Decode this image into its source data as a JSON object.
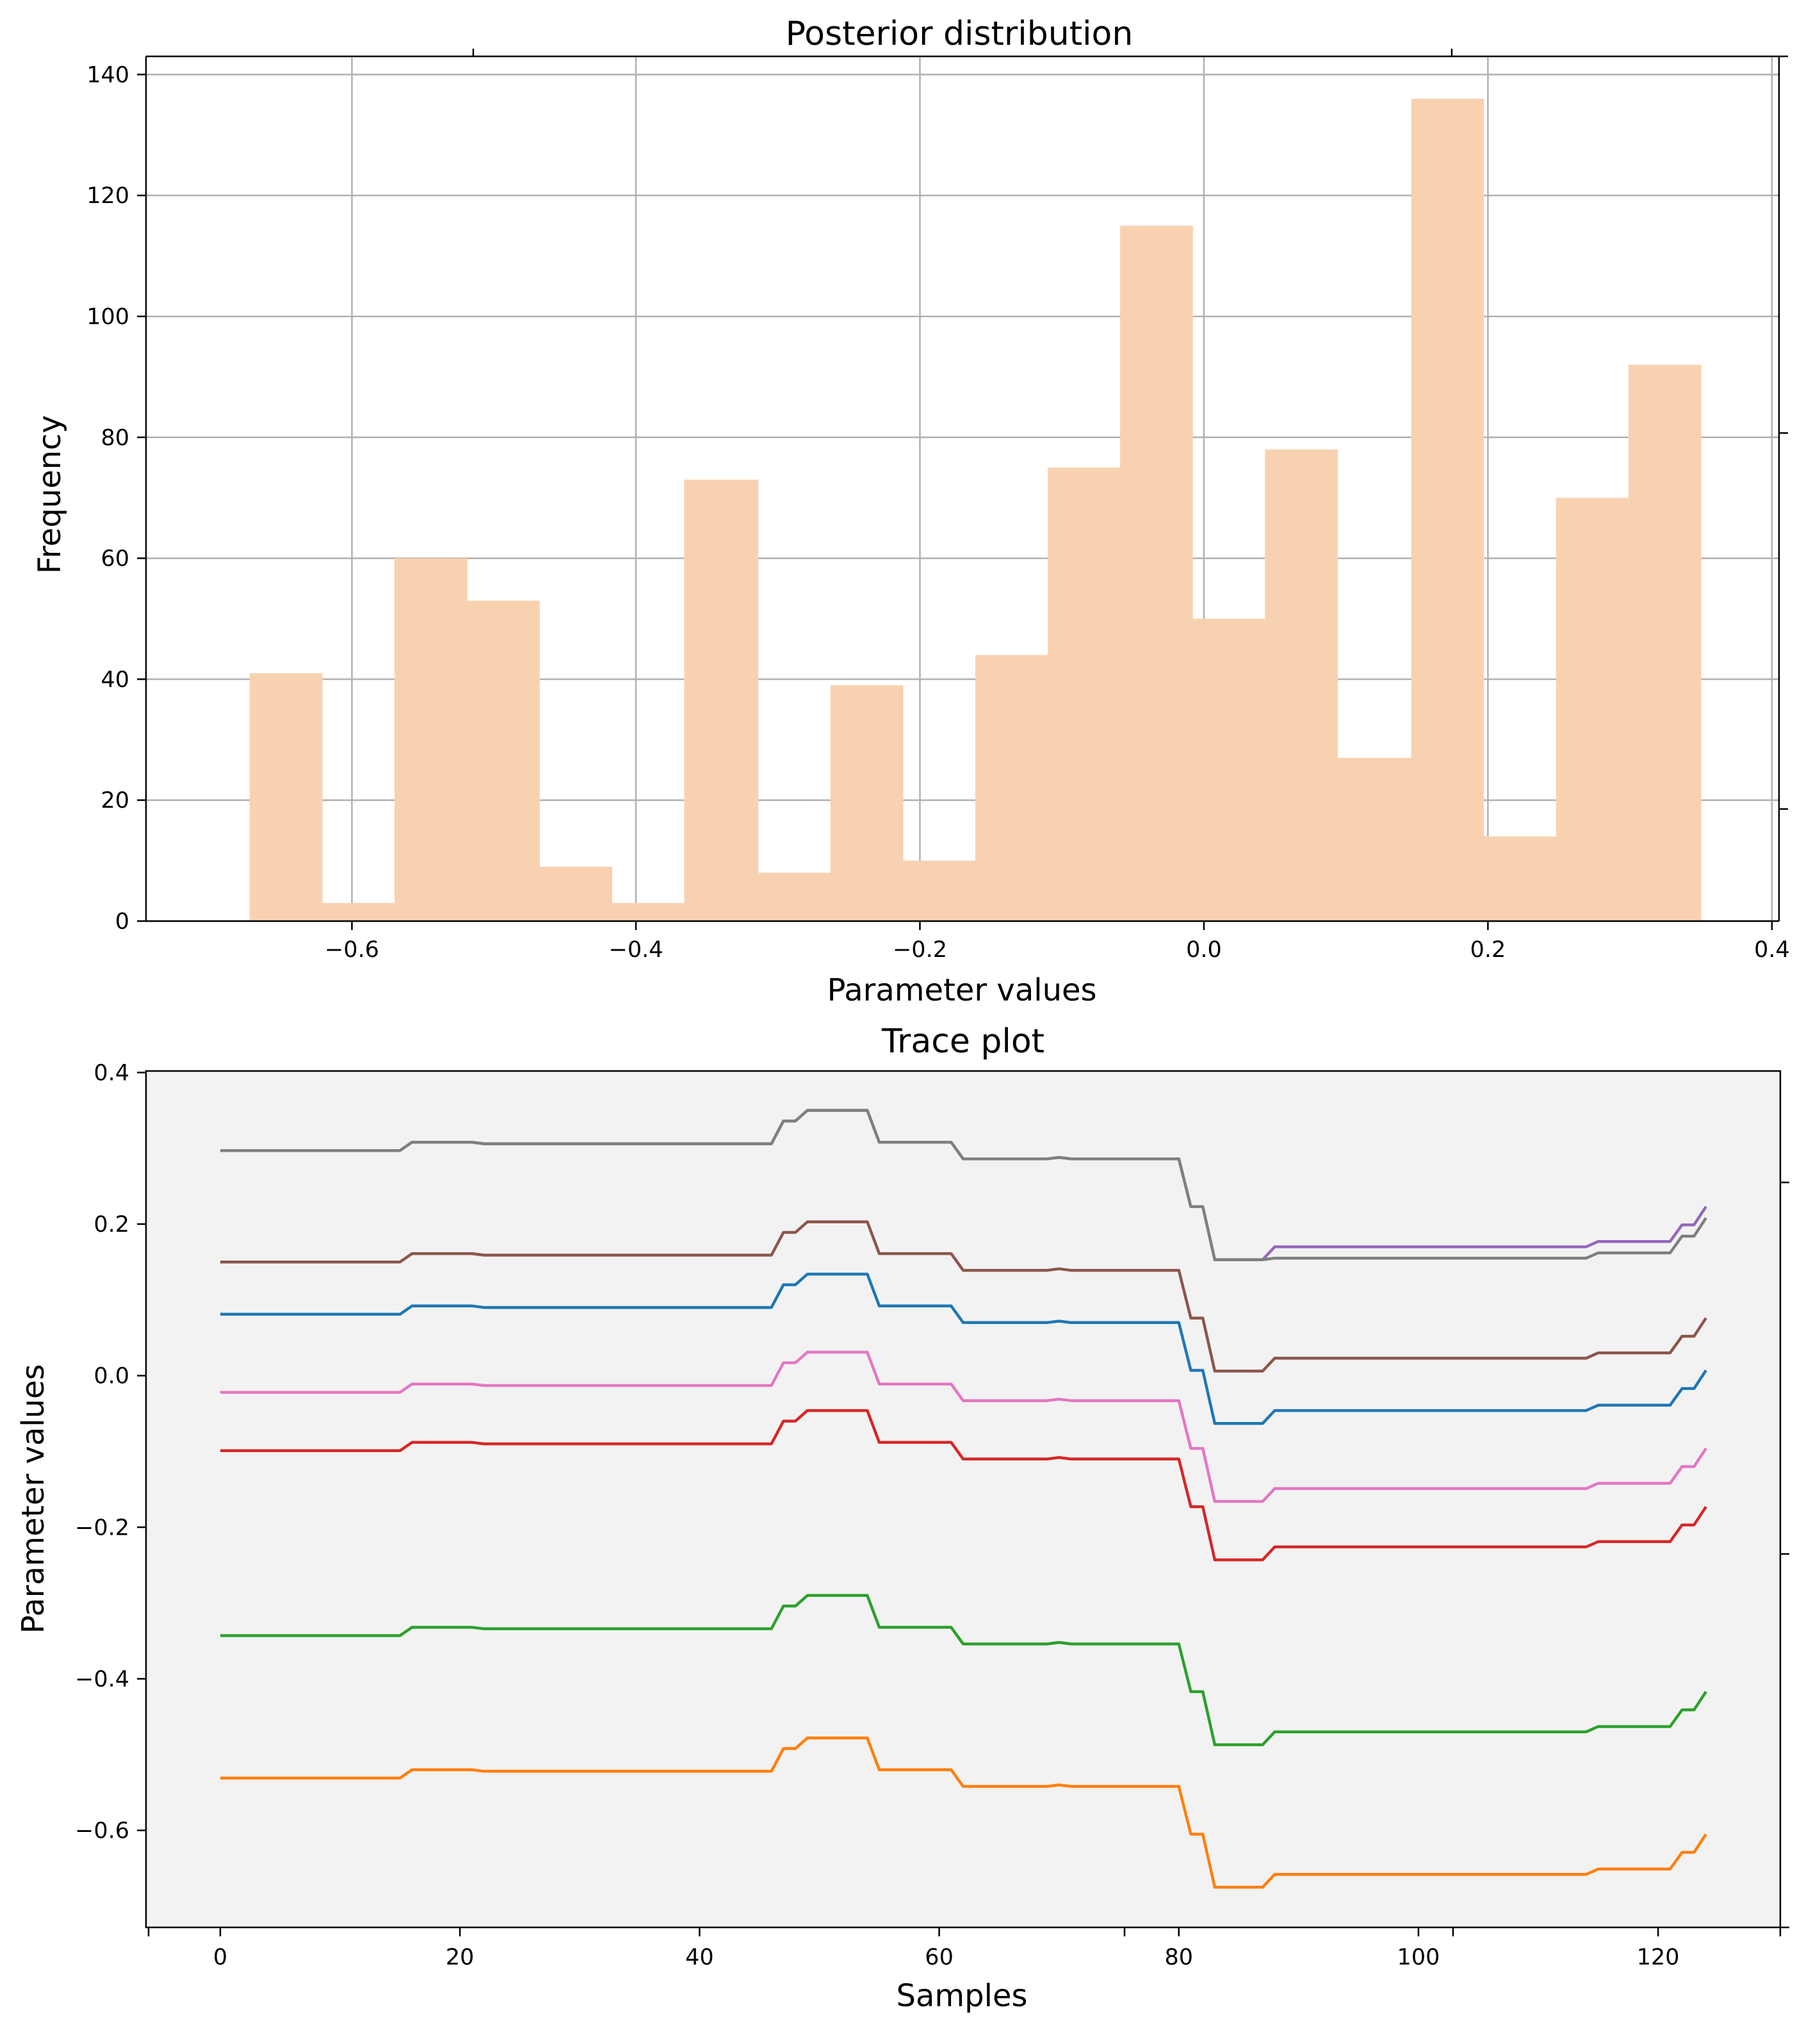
{
  "chart_data": [
    {
      "type": "bar",
      "subtype": "histogram",
      "title": "Posterior distribution",
      "xlabel": "Parameter values",
      "ylabel": "Frequency",
      "xlim": [
        -0.745,
        0.405
      ],
      "ylim": [
        0,
        143
      ],
      "grid": true,
      "bar_color": "#f8d2b0",
      "bins": [
        {
          "left": -0.672,
          "right": -0.621,
          "value": 41
        },
        {
          "left": -0.621,
          "right": -0.57,
          "value": 3
        },
        {
          "left": -0.57,
          "right": -0.519,
          "value": 60
        },
        {
          "left": -0.519,
          "right": -0.468,
          "value": 53
        },
        {
          "left": -0.468,
          "right": -0.417,
          "value": 9
        },
        {
          "left": -0.417,
          "right": -0.366,
          "value": 3
        },
        {
          "left": -0.366,
          "right": -0.314,
          "value": 73
        },
        {
          "left": -0.314,
          "right": -0.263,
          "value": 8
        },
        {
          "left": -0.263,
          "right": -0.212,
          "value": 39
        },
        {
          "left": -0.212,
          "right": -0.161,
          "value": 10
        },
        {
          "left": -0.161,
          "right": -0.11,
          "value": 44
        },
        {
          "left": -0.11,
          "right": -0.059,
          "value": 75
        },
        {
          "left": -0.059,
          "right": -0.008,
          "value": 115
        },
        {
          "left": -0.008,
          "right": 0.043,
          "value": 50
        },
        {
          "left": 0.043,
          "right": 0.094,
          "value": 78
        },
        {
          "left": 0.094,
          "right": 0.146,
          "value": 27
        },
        {
          "left": 0.146,
          "right": 0.197,
          "value": 136
        },
        {
          "left": 0.197,
          "right": 0.248,
          "value": 14
        },
        {
          "left": 0.248,
          "right": 0.299,
          "value": 70
        },
        {
          "left": 0.299,
          "right": 0.35,
          "value": 92
        }
      ],
      "xticks": [
        -0.6,
        -0.4,
        -0.2,
        0.0,
        0.2,
        0.4
      ],
      "xtick_labels": [
        "−0.6",
        "−0.4",
        "−0.2",
        "0.0",
        "0.2",
        "0.4"
      ],
      "yticks": [
        0,
        20,
        40,
        60,
        80,
        100,
        120,
        140
      ],
      "ytick_labels": [
        "0",
        "20",
        "40",
        "60",
        "80",
        "100",
        "120",
        "140"
      ]
    },
    {
      "type": "line",
      "title": "Trace plot",
      "xlabel": "Samples",
      "ylabel": "Parameter values",
      "xlim": [
        -6.2,
        130.2
      ],
      "ylim": [
        -0.728,
        0.402
      ],
      "grid": false,
      "background": "#f2f2f2",
      "base_trace": [
        {
          "x": 0,
          "y": 0.297
        },
        {
          "x": 15,
          "y": 0.297
        },
        {
          "x": 16,
          "y": 0.308
        },
        {
          "x": 21,
          "y": 0.308
        },
        {
          "x": 22,
          "y": 0.306
        },
        {
          "x": 46,
          "y": 0.306
        },
        {
          "x": 47,
          "y": 0.336
        },
        {
          "x": 48,
          "y": 0.336
        },
        {
          "x": 49,
          "y": 0.35
        },
        {
          "x": 54,
          "y": 0.35
        },
        {
          "x": 55,
          "y": 0.308
        },
        {
          "x": 61,
          "y": 0.308
        },
        {
          "x": 62,
          "y": 0.286
        },
        {
          "x": 69,
          "y": 0.286
        },
        {
          "x": 70,
          "y": 0.288
        },
        {
          "x": 71,
          "y": 0.286
        },
        {
          "x": 80,
          "y": 0.286
        },
        {
          "x": 81,
          "y": 0.223
        },
        {
          "x": 82,
          "y": 0.223
        },
        {
          "x": 83,
          "y": 0.153
        },
        {
          "x": 87,
          "y": 0.153
        },
        {
          "x": 88,
          "y": 0.17
        },
        {
          "x": 114,
          "y": 0.17
        },
        {
          "x": 115,
          "y": 0.177
        },
        {
          "x": 121,
          "y": 0.177
        },
        {
          "x": 122,
          "y": 0.199
        },
        {
          "x": 123,
          "y": 0.199
        },
        {
          "x": 124,
          "y": 0.223
        }
      ],
      "series": [
        {
          "name": "series-orange",
          "color": "#ff7f0e",
          "offset": -0.828
        },
        {
          "name": "series-green",
          "color": "#2ca02c",
          "offset": -0.64
        },
        {
          "name": "series-red",
          "color": "#d62728",
          "offset": -0.396
        },
        {
          "name": "series-pink",
          "color": "#e377c2",
          "offset": -0.319
        },
        {
          "name": "series-blue",
          "color": "#1f77b4",
          "offset": -0.216
        },
        {
          "name": "series-brown",
          "color": "#8c564b",
          "offset": -0.147
        },
        {
          "name": "series-purple",
          "color": "#9467bd",
          "offset": 0.0
        },
        {
          "name": "series-gray",
          "color": "#7f7f7f",
          "offset": 0.0,
          "tail_offset": -0.015,
          "tail_from": 88
        }
      ],
      "xticks": [
        0,
        20,
        40,
        60,
        80,
        100,
        120
      ],
      "xtick_labels": [
        "0",
        "20",
        "40",
        "60",
        "80",
        "100",
        "120"
      ],
      "yticks": [
        -0.6,
        -0.4,
        -0.2,
        0.0,
        0.2,
        0.4
      ],
      "ytick_labels": [
        "−0.6",
        "−0.4",
        "−0.2",
        "0.0",
        "0.2",
        "0.4"
      ]
    }
  ]
}
